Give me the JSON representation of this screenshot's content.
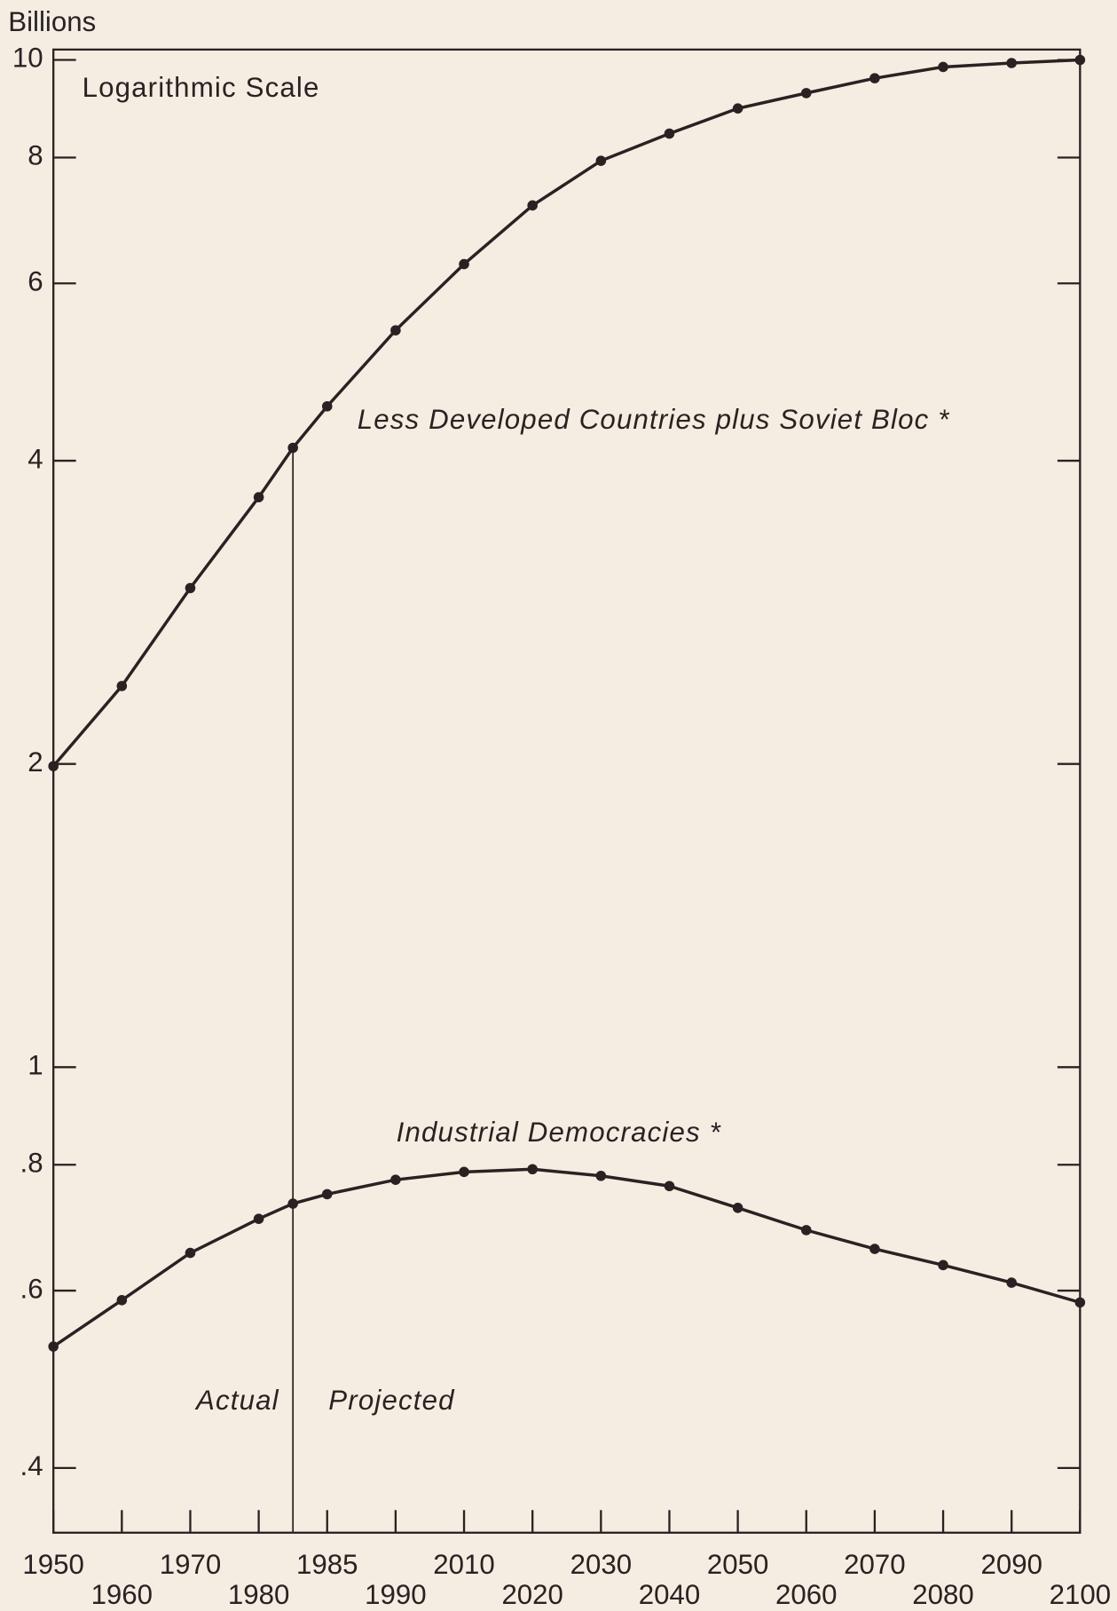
{
  "chart_data": {
    "type": "line",
    "y_label": "Billions",
    "annotations": {
      "scale": "Logarithmic Scale",
      "actual": "Actual",
      "projected": "Projected"
    },
    "log_scale": true,
    "categories": [
      "1950",
      "1960",
      "1970",
      "1980",
      null,
      "1985",
      "1990",
      "2010",
      "2020",
      "2030",
      "2040",
      "2050",
      "2060",
      "2070",
      "2080",
      "2090",
      "2100"
    ],
    "series": [
      {
        "name": "Less Developed Countries plus Soviet Bloc *",
        "color": "#2a2222",
        "values": [
          1.99,
          2.39,
          2.99,
          3.68,
          4.12,
          4.53,
          5.39,
          6.27,
          7.17,
          7.94,
          8.45,
          8.95,
          9.27,
          9.59,
          9.84,
          9.93,
          10.0
        ]
      },
      {
        "name": "Industrial Democracies *",
        "color": "#2a2222",
        "values": [
          0.528,
          0.587,
          0.654,
          0.707,
          0.732,
          0.748,
          0.773,
          0.787,
          0.792,
          0.78,
          0.762,
          0.725,
          0.689,
          0.66,
          0.636,
          0.611,
          0.584
        ]
      }
    ],
    "ylim": [
      0.345,
      10.24
    ],
    "yticks": [
      10,
      8,
      6,
      4,
      2,
      1,
      {
        "value": 0.8,
        "label": ".8"
      },
      {
        "value": 0.6,
        "label": ".6"
      },
      {
        "value": 0.4,
        "label": ".4"
      }
    ]
  }
}
